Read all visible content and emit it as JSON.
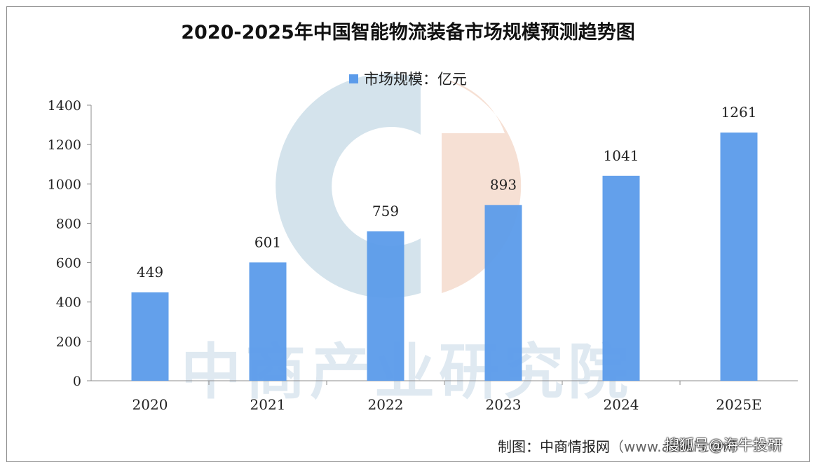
{
  "chart_data": {
    "type": "bar",
    "title": "2020-2025年中国智能物流装备市场规模预测趋势图",
    "categories": [
      "2020",
      "2021",
      "2022",
      "2023",
      "2024",
      "2025E"
    ],
    "series": [
      {
        "name": "市场规模：亿元",
        "values": [
          449,
          601,
          759,
          893,
          1041,
          1261
        ],
        "color": "#5b9bea"
      }
    ],
    "ylim": [
      0,
      1400
    ],
    "yticks": [
      0,
      200,
      400,
      600,
      800,
      1000,
      1200,
      1400
    ],
    "data_labels": true,
    "legend_position": "top-center",
    "grid": false
  },
  "credit": {
    "label": "制图：中商情报网",
    "site": "（www.askci.com）"
  },
  "watermark": {
    "text": "中商产业研究院",
    "logo_left_color": "#c5d9e6",
    "logo_right_color": "#f3d6c6"
  },
  "overlay": {
    "text": "搜狐号@海牛投研"
  }
}
